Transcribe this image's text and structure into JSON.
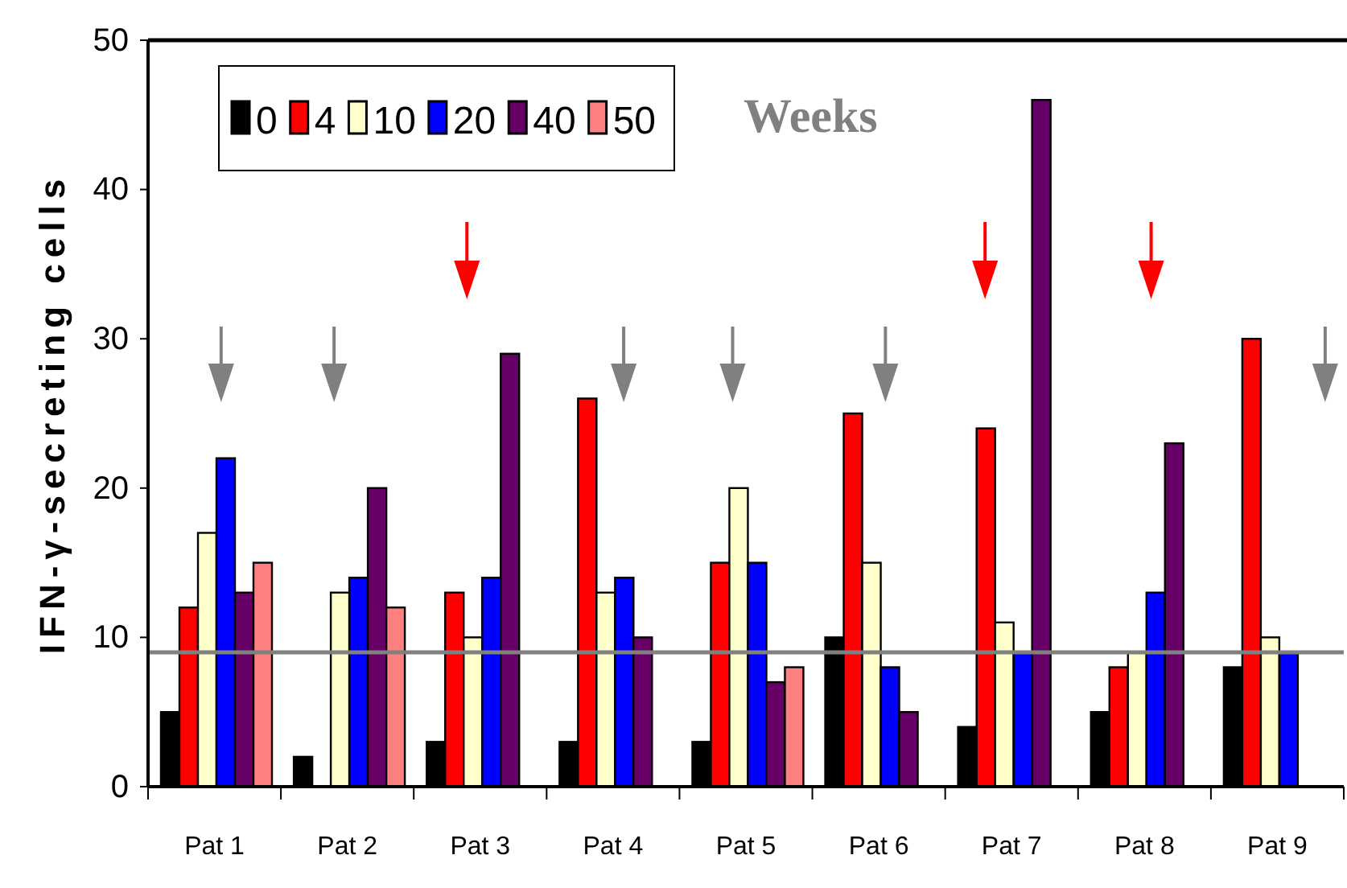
{
  "chart_data": {
    "type": "bar",
    "ylabel": "IFN-γ-secreting cells",
    "legend_title": "Weeks",
    "legend": "top left",
    "grid": false,
    "categories": [
      "Pat 1",
      "Pat 2",
      "Pat 3",
      "Pat 4",
      "Pat 5",
      "Pat 6",
      "Pat 7",
      "Pat 8",
      "Pat 9"
    ],
    "ylim": [
      0,
      50
    ],
    "yticks": [
      0,
      10,
      20,
      30,
      40,
      50
    ],
    "series": [
      {
        "name": "0",
        "color": "#000000",
        "values": [
          5,
          2,
          3,
          3,
          3,
          10,
          4,
          5,
          8
        ]
      },
      {
        "name": "4",
        "color": "#ff0000",
        "values": [
          12,
          null,
          13,
          26,
          15,
          25,
          24,
          8,
          30
        ]
      },
      {
        "name": "10",
        "color": "#ffffcc",
        "values": [
          17,
          13,
          10,
          13,
          20,
          15,
          11,
          9,
          10
        ]
      },
      {
        "name": "20",
        "color": "#0000ff",
        "values": [
          22,
          14,
          14,
          14,
          15,
          8,
          9,
          13,
          9
        ]
      },
      {
        "name": "40",
        "color": "#660066",
        "values": [
          13,
          20,
          29,
          10,
          7,
          5,
          46,
          23,
          null
        ]
      },
      {
        "name": "50",
        "color": "#ff8080",
        "values": [
          15,
          12,
          null,
          null,
          8,
          null,
          null,
          null,
          null
        ]
      }
    ],
    "ref_lines": [
      {
        "axis": "y",
        "value": 9,
        "color": "#808080"
      }
    ]
  }
}
